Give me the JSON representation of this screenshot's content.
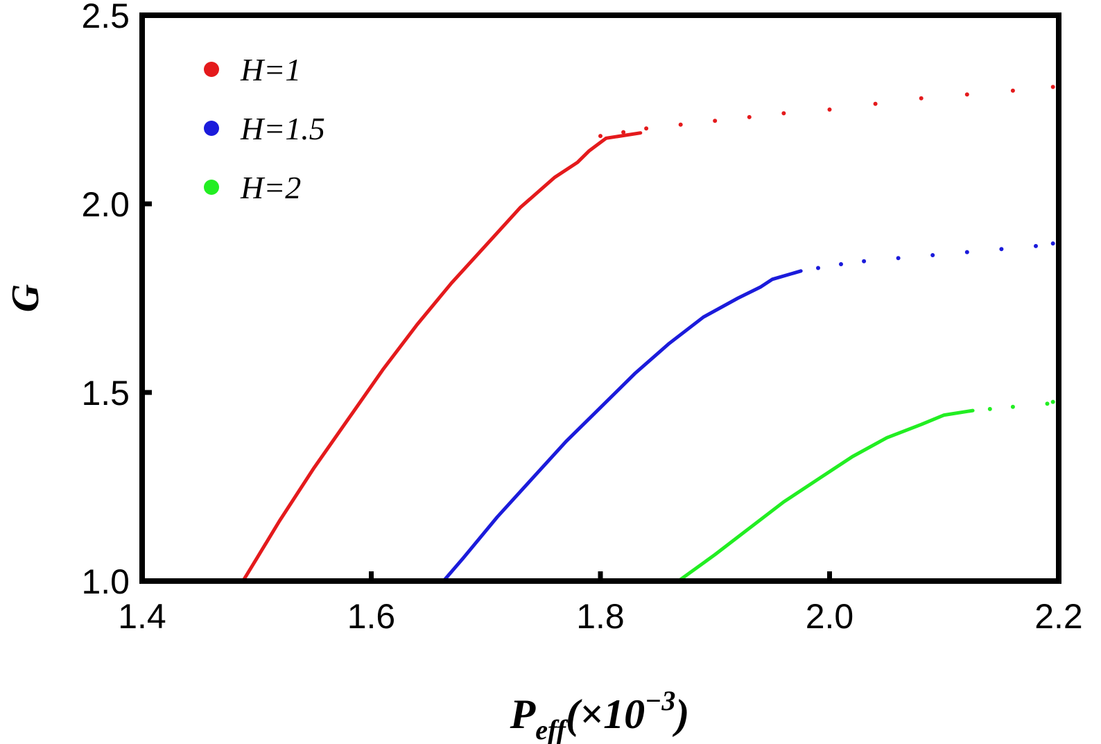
{
  "chart_data": {
    "type": "scatter",
    "title": "",
    "xlabel": {
      "main": "P",
      "sub": "eff",
      "suffix_open": "(×10",
      "sup": "−3",
      "suffix_close": ")"
    },
    "ylabel": "G",
    "xlim": [
      1.4,
      2.2
    ],
    "ylim": [
      1.0,
      2.5
    ],
    "x_ticks": [
      "1.4",
      "1.6",
      "1.8",
      "2.0",
      "2.2"
    ],
    "y_ticks": [
      "1.0",
      "1.5",
      "2.0",
      "2.5"
    ],
    "grid": false,
    "legend_position": "top-left",
    "series": [
      {
        "name": "H=1",
        "color": "#e41a1c",
        "curve": [
          [
            1.488,
            1.0
          ],
          [
            1.5,
            1.06
          ],
          [
            1.52,
            1.16
          ],
          [
            1.55,
            1.3
          ],
          [
            1.58,
            1.43
          ],
          [
            1.61,
            1.56
          ],
          [
            1.64,
            1.68
          ],
          [
            1.67,
            1.79
          ],
          [
            1.7,
            1.89
          ],
          [
            1.73,
            1.99
          ],
          [
            1.76,
            2.07
          ],
          [
            1.78,
            2.11
          ],
          [
            1.79,
            2.14
          ],
          [
            1.805,
            2.174
          ],
          [
            1.835,
            2.188
          ]
        ],
        "sparse": [
          [
            1.8,
            2.18
          ],
          [
            1.82,
            2.19
          ],
          [
            1.84,
            2.2
          ],
          [
            1.87,
            2.21
          ],
          [
            1.9,
            2.22
          ],
          [
            1.93,
            2.23
          ],
          [
            1.96,
            2.24
          ],
          [
            2.0,
            2.25
          ],
          [
            2.04,
            2.265
          ],
          [
            2.08,
            2.28
          ],
          [
            2.12,
            2.29
          ],
          [
            2.16,
            2.3
          ],
          [
            2.195,
            2.31
          ]
        ]
      },
      {
        "name": "H=1.5",
        "color": "#1b1bdb",
        "curve": [
          [
            1.663,
            1.0
          ],
          [
            1.68,
            1.06
          ],
          [
            1.71,
            1.17
          ],
          [
            1.74,
            1.27
          ],
          [
            1.77,
            1.37
          ],
          [
            1.8,
            1.46
          ],
          [
            1.83,
            1.55
          ],
          [
            1.86,
            1.63
          ],
          [
            1.89,
            1.7
          ],
          [
            1.92,
            1.75
          ],
          [
            1.94,
            1.78
          ],
          [
            1.95,
            1.8
          ],
          [
            1.975,
            1.822
          ]
        ],
        "sparse": [
          [
            1.99,
            1.83
          ],
          [
            2.01,
            1.84
          ],
          [
            2.03,
            1.848
          ],
          [
            2.06,
            1.856
          ],
          [
            2.09,
            1.864
          ],
          [
            2.12,
            1.872
          ],
          [
            2.15,
            1.88
          ],
          [
            2.18,
            1.888
          ],
          [
            2.195,
            1.895
          ]
        ]
      },
      {
        "name": "H=2",
        "color": "#22ee22",
        "curve": [
          [
            1.868,
            1.0
          ],
          [
            1.9,
            1.07
          ],
          [
            1.93,
            1.14
          ],
          [
            1.96,
            1.21
          ],
          [
            1.99,
            1.27
          ],
          [
            2.02,
            1.33
          ],
          [
            2.05,
            1.38
          ],
          [
            2.08,
            1.415
          ],
          [
            2.1,
            1.44
          ],
          [
            2.125,
            1.452
          ]
        ],
        "sparse": [
          [
            2.14,
            1.456
          ],
          [
            2.16,
            1.462
          ],
          [
            2.19,
            1.47
          ],
          [
            2.195,
            1.475
          ]
        ]
      }
    ]
  }
}
